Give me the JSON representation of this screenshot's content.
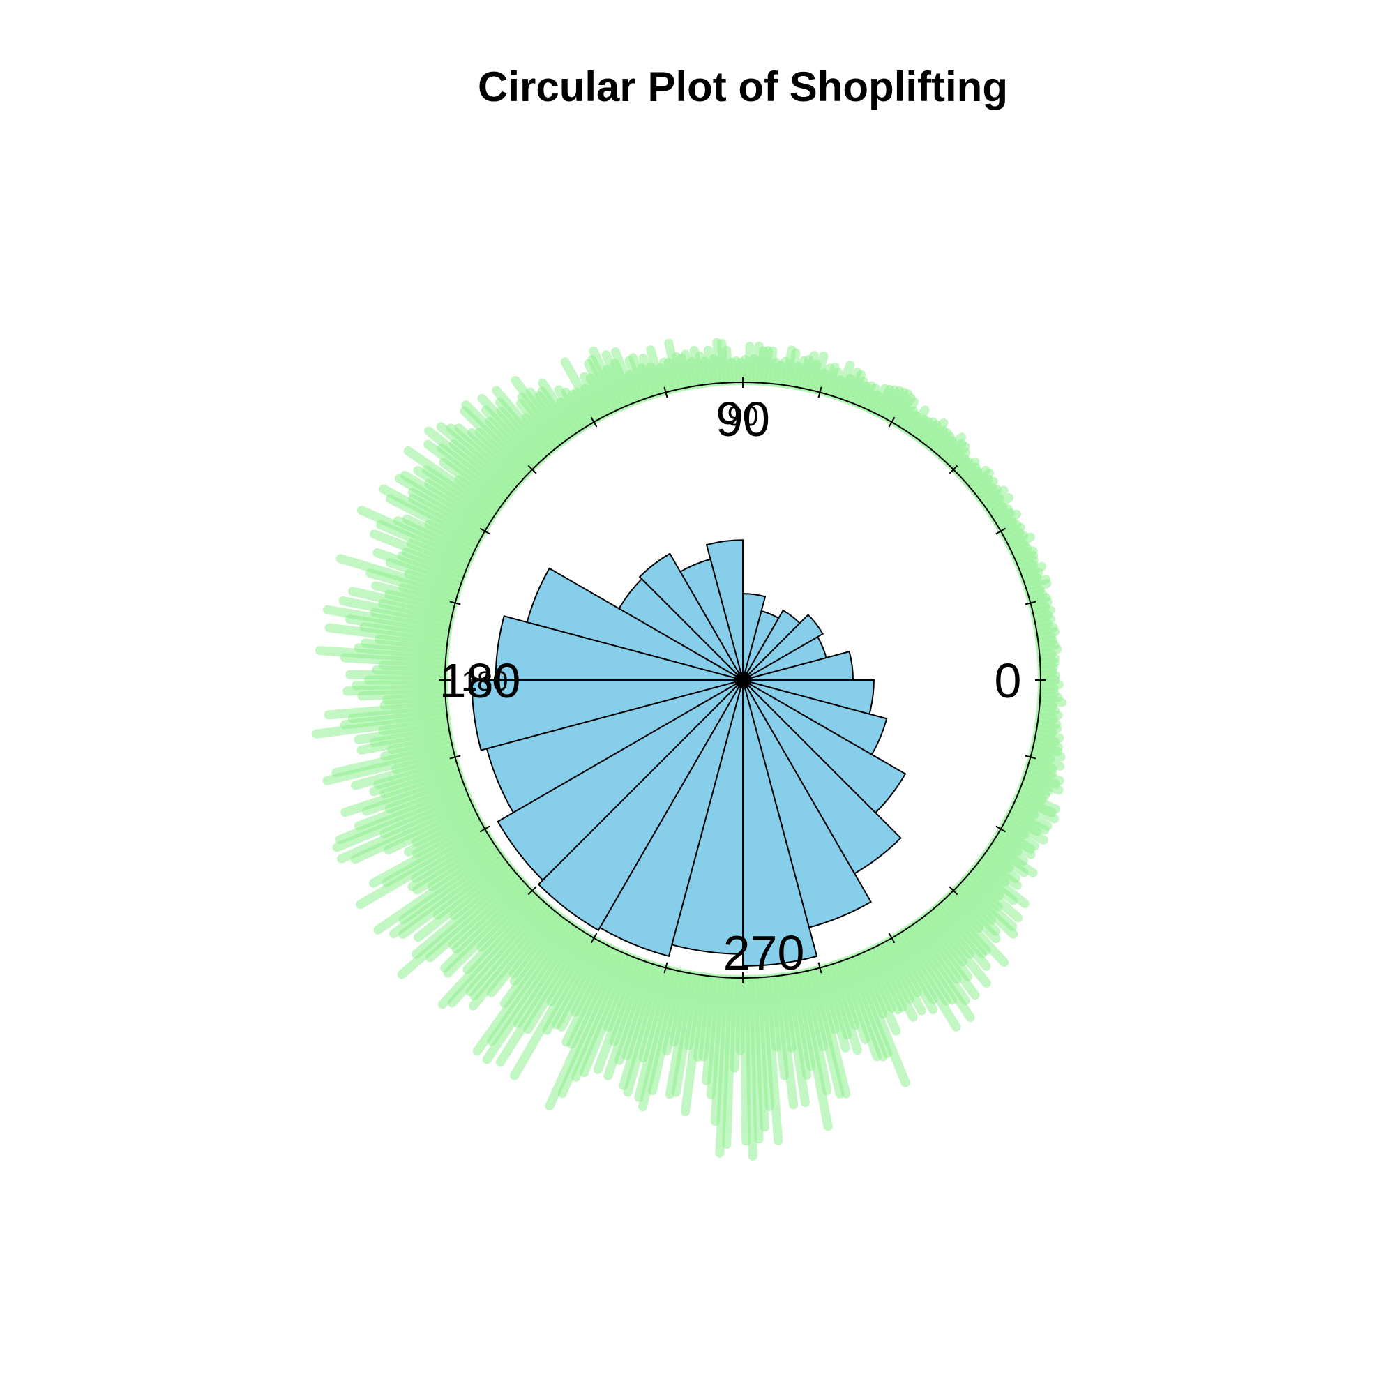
{
  "chart_data": {
    "type": "rose",
    "title": "Circular Plot of Shoplifting",
    "units": "degrees",
    "zero": "east",
    "rotation": "counter-clockwise",
    "axis_labels": [
      "0",
      "90",
      "180",
      "270"
    ],
    "bin_width_deg": 15,
    "bins": {
      "angle_start": [
        0,
        15,
        30,
        45,
        60,
        75,
        90,
        105,
        120,
        135,
        150,
        165,
        180,
        195,
        210,
        225,
        240,
        255,
        270,
        285,
        300,
        315,
        330,
        345
      ],
      "relative_radius": [
        0.37,
        0.29,
        0.31,
        0.27,
        0.24,
        0.29,
        0.47,
        0.42,
        0.49,
        0.48,
        0.75,
        0.83,
        0.91,
        0.89,
        0.95,
        0.97,
        0.96,
        0.92,
        0.96,
        0.86,
        0.75,
        0.63,
        0.5,
        0.44
      ]
    },
    "rug": {
      "color": "#90EE90",
      "description": "stacked individual observations around the circle",
      "relative_density_by_angle": {
        "angles": [
          0,
          30,
          60,
          90,
          120,
          150,
          180,
          210,
          240,
          270,
          300,
          330
        ],
        "density": [
          0.05,
          0.08,
          0.12,
          0.15,
          0.3,
          0.5,
          0.6,
          0.65,
          0.75,
          0.8,
          0.55,
          0.2
        ]
      }
    },
    "colors": {
      "bars": "#87CEEB",
      "outline": "#000000",
      "rug": "#90EE90"
    }
  }
}
